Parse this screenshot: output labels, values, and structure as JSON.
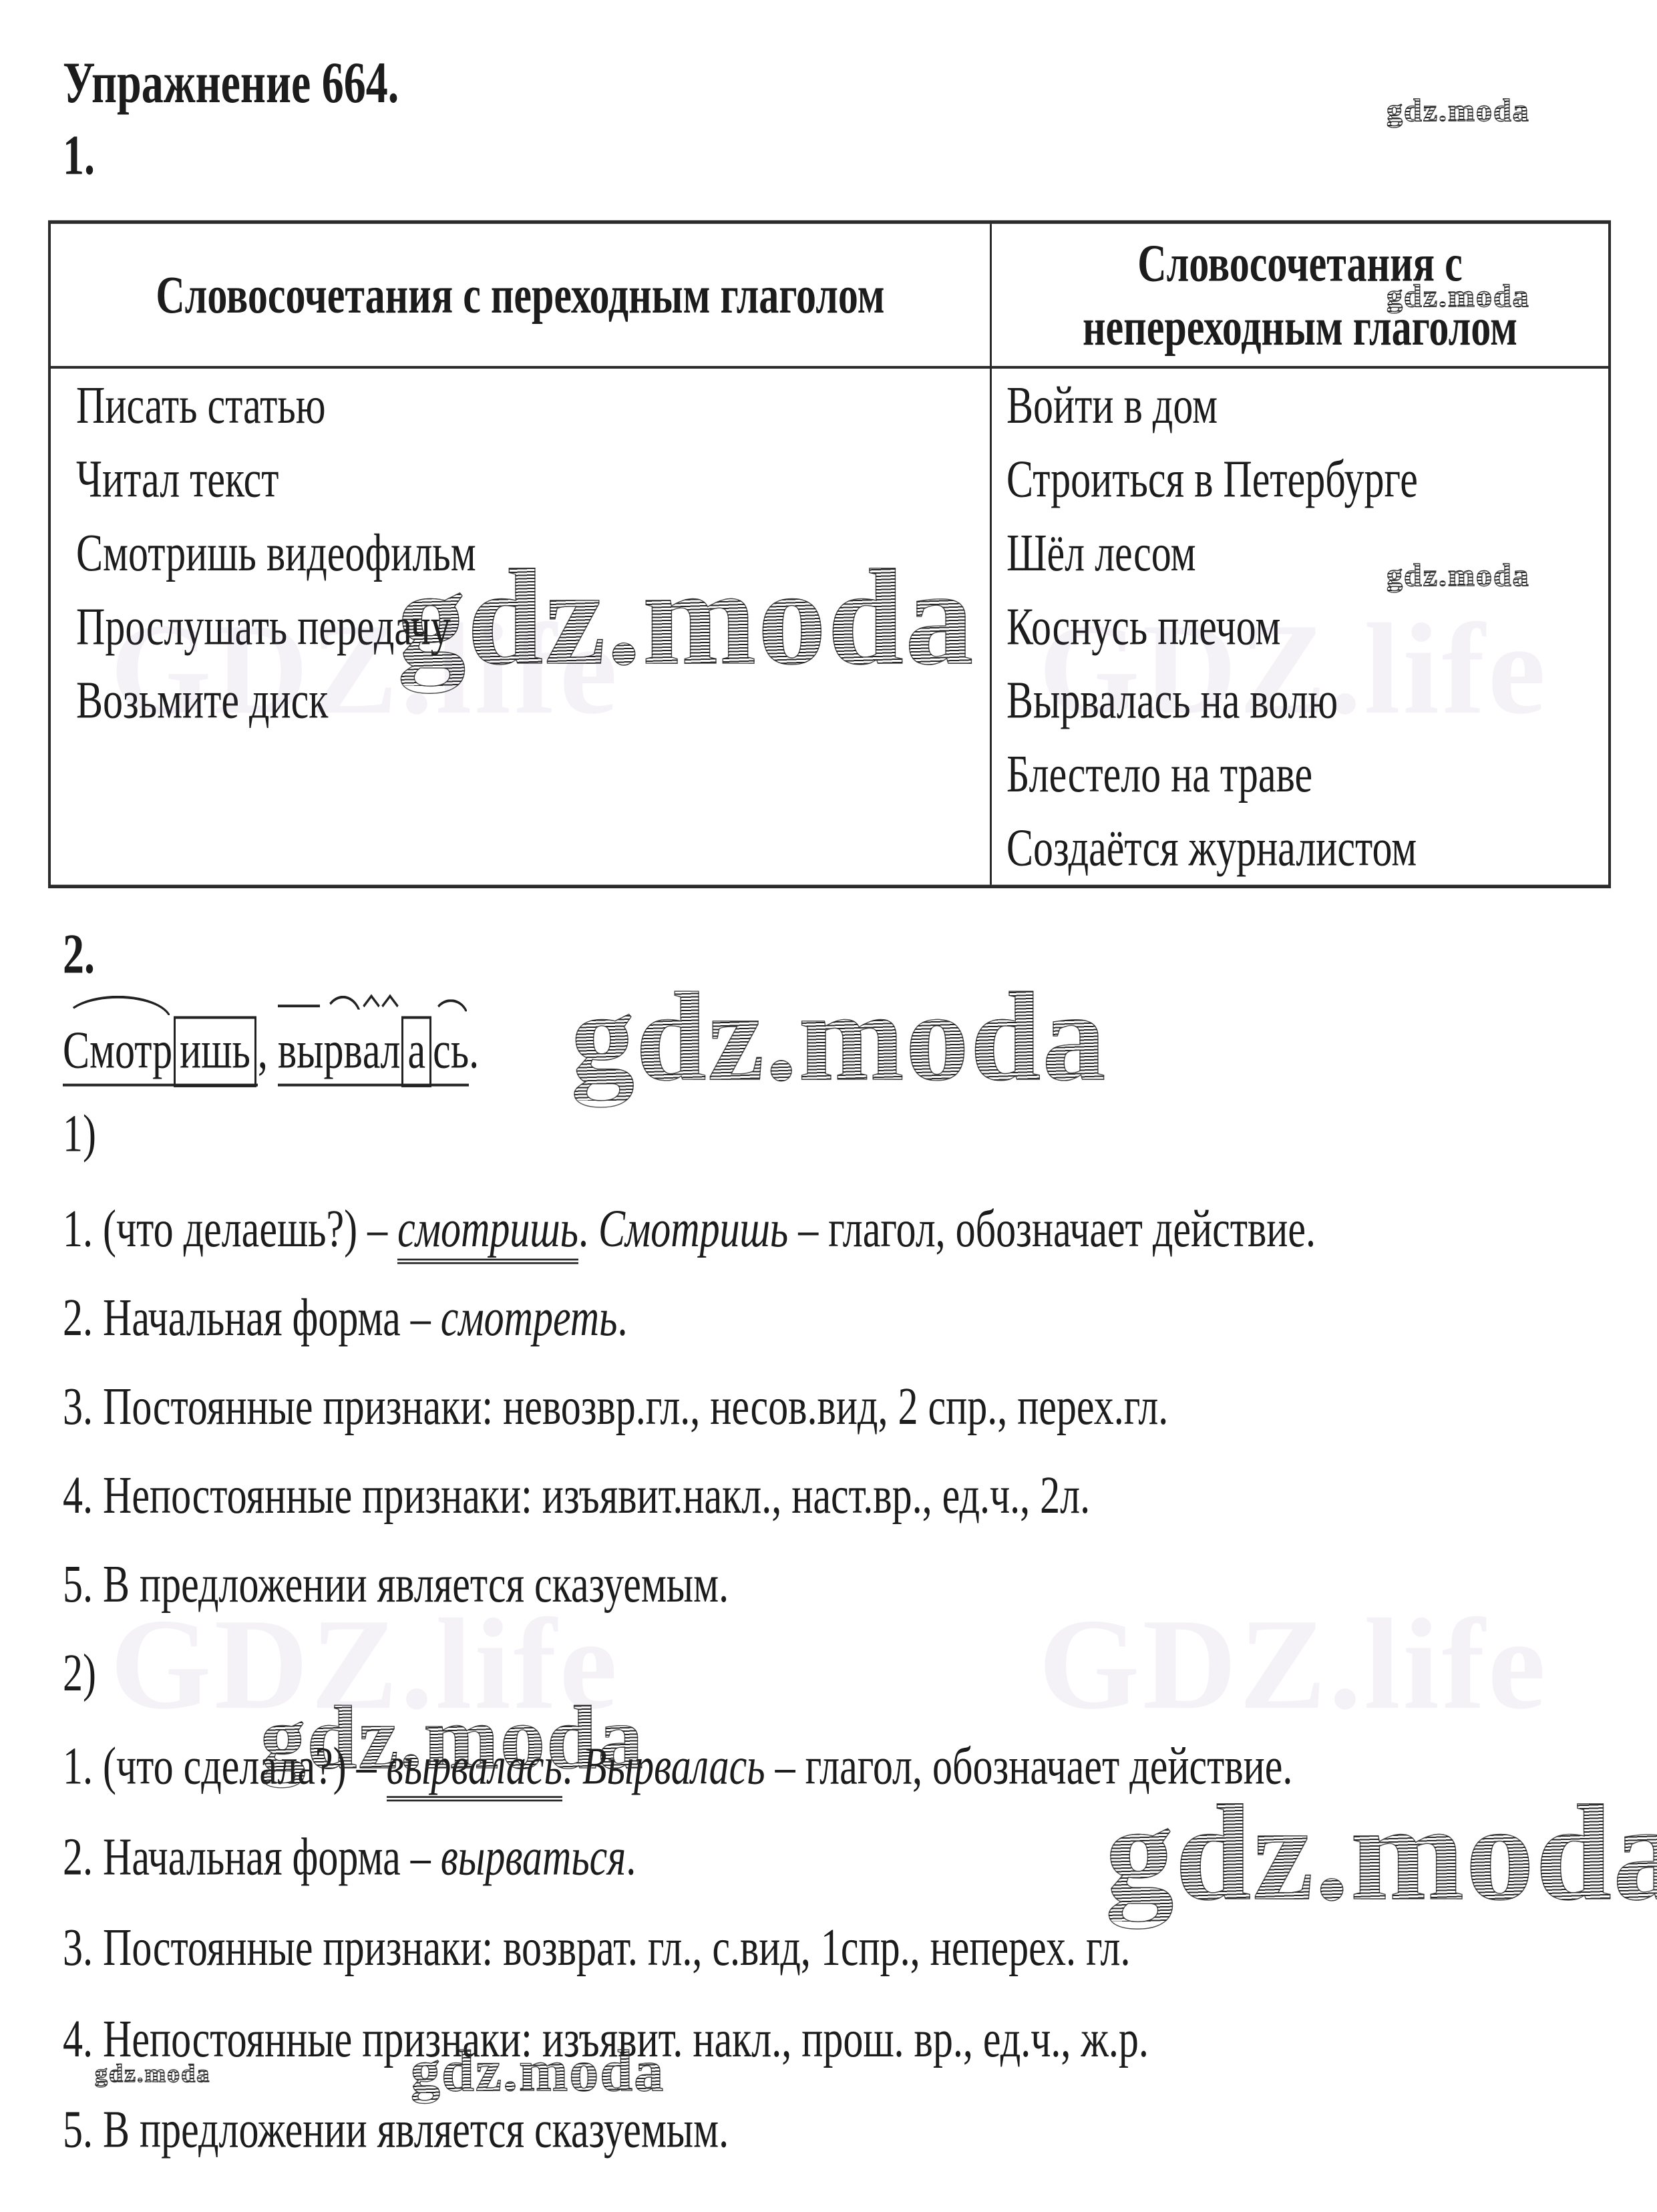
{
  "page": {
    "title": "Упражнение 664.",
    "part1_label": "1.",
    "part2_label": "2.",
    "sub1_label": "1)",
    "sub2_label": "2)"
  },
  "watermark": {
    "brand": "gdz.moda",
    "background": "GDZ.life"
  },
  "table": {
    "col1_header": "Словосочетания с переходным глаголом",
    "col2_header_line1": "Словосочетания с",
    "col2_header_line2": "непереходным глаголом",
    "col1_rows": [
      "Писать статью",
      "Читал текст",
      "Смотришь видеофильм",
      "Прослушать передачу",
      "Возьмите диск"
    ],
    "col2_rows": [
      "Войти в дом",
      "Строиться в Петербурге",
      "Шёл лесом",
      "Коснусь плечом",
      "Вырвалась на волю",
      "Блестело на траве",
      "Создаётся журналистом"
    ]
  },
  "morphemic": {
    "word1": {
      "segments": [
        {
          "text": "Смотр",
          "mark": "root-arc"
        },
        {
          "text": "ишь",
          "mark": "ending-box"
        }
      ],
      "after": ","
    },
    "word2": {
      "segments": [
        {
          "text": "вы",
          "mark": "prefix-line"
        },
        {
          "text": "рв",
          "mark": "root-arc"
        },
        {
          "text": "а",
          "mark": "suffix-caret"
        },
        {
          "text": "л",
          "mark": "suffix-caret"
        },
        {
          "text": "а",
          "mark": "ending-box"
        },
        {
          "text": "сь",
          "mark": "postfix-arc"
        }
      ],
      "after": "."
    }
  },
  "analysis1": {
    "item1": {
      "pre": "1. (что делаешь?) – ",
      "word": "смотришь",
      "mid": ". ",
      "word2": "Смотришь",
      "post": " – глагол, обозначает действие."
    },
    "item2": {
      "pre": "2. Начальная форма – ",
      "word": "смотреть",
      "post": "."
    },
    "item3": "3. Постоянные признаки: невозвр.гл., несов.вид, 2 спр., перех.гл.",
    "item4": "4. Непостоянные признаки: изъявит.накл., наст.вр., ед.ч., 2л.",
    "item5": "5. В предложении является сказуемым."
  },
  "analysis2": {
    "item1": {
      "pre": "1. (что сделала?) – ",
      "word": "вырвалась",
      "mid": ". ",
      "word2": "Вырвалась",
      "post": " – глагол, обозначает действие."
    },
    "item2": {
      "pre": "2. Начальная форма – ",
      "word": "вырваться",
      "post": "."
    },
    "item3": "3. Постоянные признаки: возврат. гл., с.вид, 1спр., неперех. гл.",
    "item4": "4. Непостоянные признаки: изъявит. накл., прош. вр., ед.ч., ж.р.",
    "item5": "5. В предложении является сказуемым."
  }
}
